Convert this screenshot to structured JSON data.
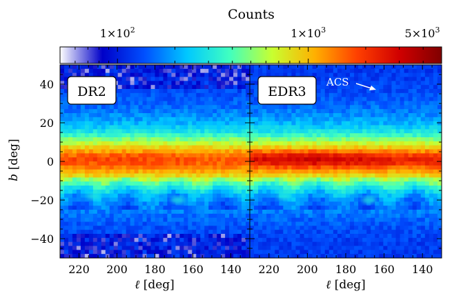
{
  "chart_data": {
    "type": "heatmap",
    "colorbar": {
      "title": "Counts",
      "scale": "log",
      "range": [
        50,
        5000
      ],
      "ticks": [
        {
          "value": 100,
          "mant": "1",
          "exp": "2"
        },
        {
          "value": 1000,
          "mant": "1",
          "exp": "3"
        },
        {
          "value": 5000,
          "mant": "5",
          "exp": "3"
        }
      ],
      "colormap": [
        "#ffffff",
        "#0000c8",
        "#0050ff",
        "#00c8ff",
        "#40ffc0",
        "#c8ff30",
        "#ffb000",
        "#ff4000",
        "#d00000",
        "#800000"
      ]
    },
    "ylabel_var": "b",
    "ylabel_unit": " [deg]",
    "xlabel_var": "ℓ",
    "xlabel_unit": " [deg]",
    "yticks": [
      40,
      20,
      0,
      -20,
      -40
    ],
    "ylim": [
      -50,
      50
    ],
    "xlim": [
      230,
      130
    ],
    "xticks": [
      220,
      200,
      180,
      160,
      140
    ],
    "panels": [
      {
        "label": "DR2",
        "band_peak": 1300,
        "holes": true
      },
      {
        "label": "EDR3",
        "band_peak": 2600,
        "holes": false
      }
    ],
    "annotation": {
      "text": "ACS",
      "panel": 1
    }
  }
}
